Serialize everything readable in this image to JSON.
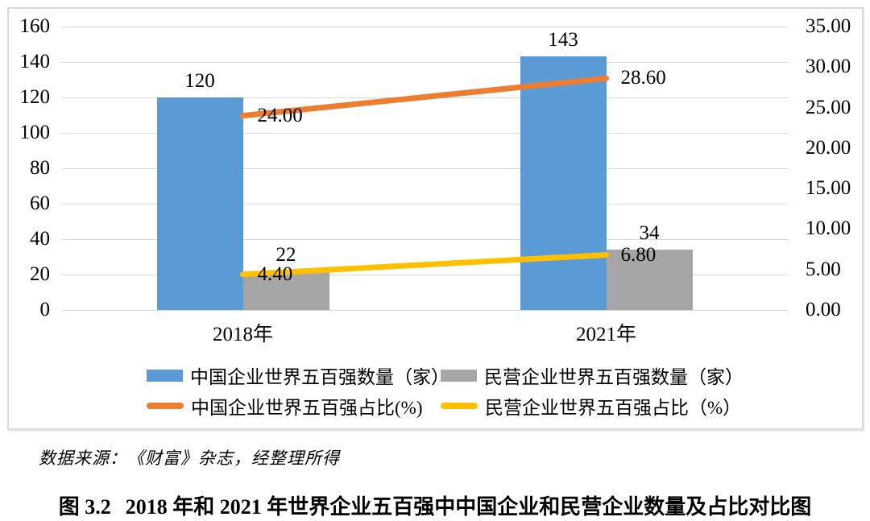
{
  "source_note": "数据来源：《财富》杂志，经整理所得",
  "caption": {
    "label": "图 3.2",
    "text": "2018 年和 2021 年世界企业五百强中中国企业和民营企业数量及占比对比图"
  },
  "chart_data": {
    "type": "combo-bar-line",
    "categories": [
      "2018年",
      "2021年"
    ],
    "series": [
      {
        "name": "中国企业世界五百强数量（家）",
        "type": "bar",
        "axis": "left",
        "color": "#5B9BD5",
        "values": [
          120,
          143
        ],
        "data_labels": [
          "120",
          "143"
        ]
      },
      {
        "name": "民营企业世界五百强数量（家）",
        "type": "bar",
        "axis": "left",
        "color": "#A6A6A6",
        "values": [
          22,
          34
        ],
        "data_labels": [
          "22",
          "34"
        ]
      },
      {
        "name": "中国企业世界五百强占比(%)",
        "type": "line",
        "axis": "right",
        "color": "#ED7D31",
        "values": [
          24.0,
          28.6
        ],
        "data_labels": [
          "24.00",
          "28.60"
        ]
      },
      {
        "name": "民营企业世界五百强占比（%）",
        "type": "line",
        "axis": "right",
        "color": "#FFC000",
        "values": [
          4.4,
          6.8
        ],
        "data_labels": [
          "4.40",
          "6.80"
        ]
      }
    ],
    "left_axis": {
      "min": 0,
      "max": 160,
      "tick_values": [
        0,
        20,
        40,
        60,
        80,
        100,
        120,
        140,
        160
      ],
      "tick_labels": [
        "0",
        "20",
        "40",
        "60",
        "80",
        "100",
        "120",
        "140",
        "160"
      ]
    },
    "right_axis": {
      "min": 0,
      "max": 35,
      "tick_values": [
        0,
        5,
        10,
        15,
        20,
        25,
        30,
        35
      ],
      "tick_labels": [
        "0.00",
        "5.00",
        "10.00",
        "15.00",
        "20.00",
        "25.00",
        "30.00",
        "35.00"
      ]
    },
    "grid": true,
    "gridline_color": "#D9D9D9",
    "legend_position": "bottom"
  }
}
